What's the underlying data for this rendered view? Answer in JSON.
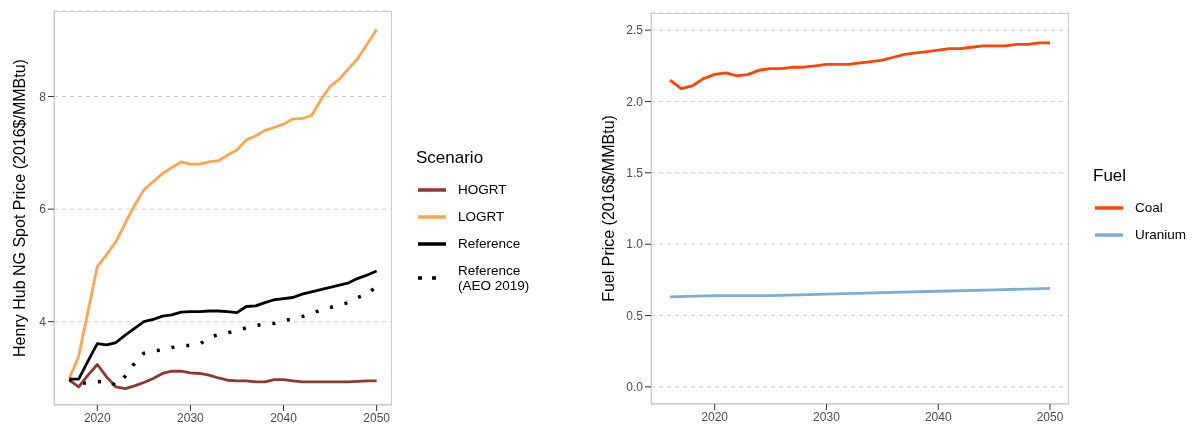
{
  "chart_data": [
    {
      "type": "line",
      "ylabel": "Henry Hub NG Spot Price (2016$/MMBtu)",
      "legend_title": "Scenario",
      "legend": "right",
      "grid": "y",
      "xlim": [
        2015.35,
        2051.65
      ],
      "xticks": [
        2020,
        2030,
        2040,
        2050
      ],
      "ylim": [
        2.52,
        9.52
      ],
      "yticks": [
        4,
        6,
        8
      ],
      "series": [
        {
          "name": "HOGRT",
          "color": "#8b3a2f",
          "line_style": "solid",
          "x": [
            2017,
            2018,
            2019,
            2020,
            2021,
            2022,
            2023,
            2024,
            2025,
            2026,
            2027,
            2028,
            2029,
            2030,
            2031,
            2032,
            2033,
            2034,
            2035,
            2036,
            2037,
            2038,
            2039,
            2040,
            2041,
            2042,
            2043,
            2044,
            2045,
            2046,
            2047,
            2048,
            2049,
            2050
          ],
          "values": [
            2.96,
            2.84,
            3.05,
            3.24,
            3.02,
            2.84,
            2.81,
            2.86,
            2.92,
            2.99,
            3.08,
            3.12,
            3.12,
            3.09,
            3.08,
            3.05,
            3.0,
            2.96,
            2.95,
            2.95,
            2.93,
            2.93,
            2.97,
            2.97,
            2.95,
            2.93,
            2.93,
            2.93,
            2.93,
            2.93,
            2.93,
            2.94,
            2.95,
            2.95
          ]
        },
        {
          "name": "LOGRT",
          "color": "#ffa64d",
          "line_style": "solid",
          "x": [
            2017,
            2018,
            2019,
            2020,
            2021,
            2022,
            2023,
            2024,
            2025,
            2026,
            2027,
            2028,
            2029,
            2030,
            2031,
            2032,
            2033,
            2034,
            2035,
            2036,
            2037,
            2038,
            2039,
            2040,
            2041,
            2042,
            2043,
            2044,
            2045,
            2046,
            2047,
            2048,
            2049,
            2050
          ],
          "values": [
            2.99,
            3.39,
            4.18,
            4.98,
            5.19,
            5.42,
            5.75,
            6.07,
            6.34,
            6.49,
            6.63,
            6.74,
            6.84,
            6.8,
            6.8,
            6.84,
            6.86,
            6.96,
            7.05,
            7.23,
            7.3,
            7.4,
            7.45,
            7.51,
            7.6,
            7.61,
            7.66,
            7.94,
            8.18,
            8.31,
            8.5,
            8.68,
            8.94,
            9.19
          ]
        },
        {
          "name": "Reference",
          "color": "#000000",
          "line_style": "solid",
          "x": [
            2017,
            2018,
            2019,
            2020,
            2021,
            2022,
            2023,
            2024,
            2025,
            2026,
            2027,
            2028,
            2029,
            2030,
            2031,
            2032,
            2033,
            2034,
            2035,
            2036,
            2037,
            2038,
            2039,
            2040,
            2041,
            2042,
            2043,
            2044,
            2045,
            2046,
            2047,
            2048,
            2049,
            2050
          ],
          "values": [
            2.98,
            2.98,
            3.3,
            3.61,
            3.59,
            3.63,
            3.76,
            3.88,
            4.0,
            4.04,
            4.1,
            4.12,
            4.17,
            4.18,
            4.18,
            4.19,
            4.19,
            4.18,
            4.16,
            4.27,
            4.28,
            4.34,
            4.39,
            4.41,
            4.43,
            4.49,
            4.53,
            4.57,
            4.61,
            4.65,
            4.69,
            4.77,
            4.83,
            4.9
          ]
        },
        {
          "name": "Reference (AEO 2019)",
          "color": "#000000",
          "line_style": "dotted",
          "x": [
            2017,
            2018,
            2019,
            2020,
            2021,
            2022,
            2023,
            2024,
            2025,
            2026,
            2027,
            2028,
            2029,
            2030,
            2031,
            2032,
            2033,
            2034,
            2035,
            2036,
            2037,
            2038,
            2039,
            2040,
            2041,
            2042,
            2043,
            2044,
            2045,
            2046,
            2047,
            2048,
            2049,
            2050
          ],
          "values": [
            2.98,
            2.89,
            2.92,
            2.93,
            2.95,
            2.87,
            3.03,
            3.26,
            3.44,
            3.48,
            3.5,
            3.54,
            3.57,
            3.58,
            3.6,
            3.72,
            3.77,
            3.8,
            3.85,
            3.89,
            3.93,
            3.96,
            3.97,
            4.02,
            4.05,
            4.09,
            4.14,
            4.21,
            4.25,
            4.3,
            4.34,
            4.43,
            4.49,
            4.63
          ]
        }
      ]
    },
    {
      "type": "line",
      "ylabel": "Fuel Price (2016$/MMBtu)",
      "legend_title": "Fuel",
      "legend": "right",
      "grid": "y",
      "xlim": [
        2014.3,
        2051.7
      ],
      "xticks": [
        2020,
        2030,
        2040,
        2050
      ],
      "ylim": [
        -0.12,
        2.62
      ],
      "yticks": [
        {
          "value": 0,
          "label": "0.0"
        },
        {
          "value": 0.5,
          "label": "0.5"
        },
        {
          "value": 1,
          "label": "1.0"
        },
        {
          "value": 1.5,
          "label": "1.5"
        },
        {
          "value": 2,
          "label": "2.0"
        },
        {
          "value": 2.5,
          "label": "2.5"
        }
      ],
      "series": [
        {
          "name": "Coal",
          "color": "#ff4500",
          "line_style": "solid",
          "x": [
            2016,
            2017,
            2018,
            2019,
            2020,
            2021,
            2022,
            2023,
            2024,
            2025,
            2026,
            2027,
            2028,
            2029,
            2030,
            2031,
            2032,
            2033,
            2034,
            2035,
            2036,
            2037,
            2038,
            2039,
            2040,
            2041,
            2042,
            2043,
            2044,
            2045,
            2046,
            2047,
            2048,
            2049,
            2050
          ],
          "values": [
            2.15,
            2.09,
            2.11,
            2.16,
            2.19,
            2.2,
            2.18,
            2.19,
            2.22,
            2.23,
            2.23,
            2.24,
            2.24,
            2.25,
            2.26,
            2.26,
            2.26,
            2.27,
            2.28,
            2.29,
            2.31,
            2.33,
            2.34,
            2.35,
            2.36,
            2.37,
            2.37,
            2.38,
            2.39,
            2.39,
            2.39,
            2.4,
            2.4,
            2.41,
            2.41
          ]
        },
        {
          "name": "Uranium",
          "color": "#7aaed6",
          "line_style": "solid",
          "x": [
            2016,
            2020,
            2025,
            2030,
            2035,
            2040,
            2045,
            2050
          ],
          "values": [
            0.63,
            0.64,
            0.64,
            0.65,
            0.66,
            0.67,
            0.68,
            0.69
          ]
        }
      ]
    }
  ]
}
